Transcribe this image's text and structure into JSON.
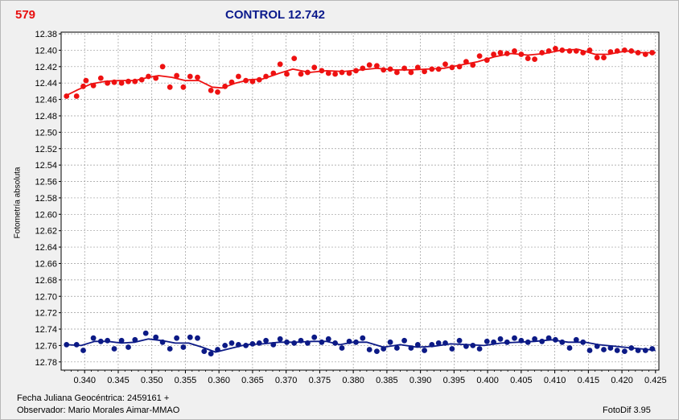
{
  "header": {
    "star_id": "579",
    "title": "CONTROL 12.742"
  },
  "footer": {
    "date_label": "Fecha Juliana Geocéntrica: 2459161 +",
    "observer": "Observador: Mario Morales Aimar-MMAO",
    "software": "FotoDif 3.95"
  },
  "colors": {
    "series_red": "#ee1111",
    "series_blue": "#0c1a86",
    "grid": "#9a9a9a",
    "plot_bg": "#ffffff"
  },
  "chart_data": {
    "type": "scatter",
    "title": "",
    "xlabel": "",
    "ylabel": "Fotometría absoluta",
    "xlim": [
      0.3365,
      0.4255
    ],
    "ylim": [
      12.378,
      12.79
    ],
    "y_inverted": true,
    "grid": true,
    "x_ticks": [
      0.34,
      0.345,
      0.35,
      0.355,
      0.36,
      0.365,
      0.37,
      0.375,
      0.38,
      0.385,
      0.39,
      0.395,
      0.4,
      0.405,
      0.41,
      0.415,
      0.42,
      0.425
    ],
    "x_tick_labels": [
      "0.340",
      "0.345",
      "0.350",
      "0.355",
      "0.360",
      "0.365",
      "0.370",
      "0.375",
      "0.380",
      "0.385",
      "0.390",
      "0.395",
      "0.400",
      "0.405",
      "0.410",
      "0.415",
      "0.420",
      "0.425"
    ],
    "y_ticks": [
      12.38,
      12.4,
      12.42,
      12.44,
      12.46,
      12.48,
      12.5,
      12.52,
      12.54,
      12.56,
      12.58,
      12.6,
      12.62,
      12.64,
      12.66,
      12.68,
      12.7,
      12.72,
      12.74,
      12.76,
      12.78
    ],
    "y_tick_labels": [
      "12.38",
      "12.40",
      "12.42",
      "12.44",
      "12.46",
      "12.48",
      "12.50",
      "12.52",
      "12.54",
      "12.56",
      "12.58",
      "12.60",
      "12.62",
      "12.64",
      "12.66",
      "12.68",
      "12.70",
      "12.72",
      "12.74",
      "12.76",
      "12.78"
    ],
    "series": [
      {
        "marker": "circle",
        "color": "#ee1111",
        "points": [
          [
            0.3373,
            12.456
          ],
          [
            0.3388,
            12.456
          ],
          [
            0.3398,
            12.444
          ],
          [
            0.3402,
            12.437
          ],
          [
            0.3413,
            12.443
          ],
          [
            0.3424,
            12.434
          ],
          [
            0.3434,
            12.44
          ],
          [
            0.3444,
            12.439
          ],
          [
            0.3455,
            12.44
          ],
          [
            0.3465,
            12.438
          ],
          [
            0.3475,
            12.438
          ],
          [
            0.3485,
            12.436
          ],
          [
            0.3495,
            12.432
          ],
          [
            0.3506,
            12.434
          ],
          [
            0.3516,
            12.42
          ],
          [
            0.3527,
            12.445
          ],
          [
            0.3537,
            12.431
          ],
          [
            0.3547,
            12.445
          ],
          [
            0.3557,
            12.432
          ],
          [
            0.3568,
            12.433
          ],
          [
            0.3588,
            12.449
          ],
          [
            0.3598,
            12.451
          ],
          [
            0.3609,
            12.444
          ],
          [
            0.3619,
            12.439
          ],
          [
            0.3629,
            12.432
          ],
          [
            0.364,
            12.437
          ],
          [
            0.365,
            12.438
          ],
          [
            0.366,
            12.436
          ],
          [
            0.367,
            12.432
          ],
          [
            0.3681,
            12.428
          ],
          [
            0.3691,
            12.417
          ],
          [
            0.3701,
            12.429
          ],
          [
            0.3712,
            12.41
          ],
          [
            0.3722,
            12.429
          ],
          [
            0.3732,
            12.427
          ],
          [
            0.3742,
            12.421
          ],
          [
            0.3753,
            12.425
          ],
          [
            0.3763,
            12.428
          ],
          [
            0.3773,
            12.429
          ],
          [
            0.3783,
            12.427
          ],
          [
            0.3794,
            12.428
          ],
          [
            0.3804,
            12.425
          ],
          [
            0.3814,
            12.422
          ],
          [
            0.3824,
            12.418
          ],
          [
            0.3835,
            12.419
          ],
          [
            0.3845,
            12.424
          ],
          [
            0.3855,
            12.423
          ],
          [
            0.3865,
            12.427
          ],
          [
            0.3876,
            12.422
          ],
          [
            0.3886,
            12.427
          ],
          [
            0.3896,
            12.421
          ],
          [
            0.3906,
            12.426
          ],
          [
            0.3917,
            12.423
          ],
          [
            0.3927,
            12.423
          ],
          [
            0.3937,
            12.417
          ],
          [
            0.3947,
            12.421
          ],
          [
            0.3958,
            12.42
          ],
          [
            0.3968,
            12.414
          ],
          [
            0.3978,
            12.418
          ],
          [
            0.3988,
            12.407
          ],
          [
            0.3999,
            12.412
          ],
          [
            0.4009,
            12.405
          ],
          [
            0.4019,
            12.403
          ],
          [
            0.4029,
            12.404
          ],
          [
            0.404,
            12.401
          ],
          [
            0.405,
            12.405
          ],
          [
            0.406,
            12.41
          ],
          [
            0.407,
            12.411
          ],
          [
            0.4081,
            12.403
          ],
          [
            0.4091,
            12.401
          ],
          [
            0.4101,
            12.398
          ],
          [
            0.4111,
            12.4
          ],
          [
            0.4122,
            12.401
          ],
          [
            0.4132,
            12.401
          ],
          [
            0.4142,
            12.403
          ],
          [
            0.4152,
            12.4
          ],
          [
            0.4163,
            12.409
          ],
          [
            0.4173,
            12.409
          ],
          [
            0.4183,
            12.402
          ],
          [
            0.4193,
            12.401
          ],
          [
            0.4204,
            12.4
          ],
          [
            0.4214,
            12.401
          ],
          [
            0.4224,
            12.403
          ],
          [
            0.4235,
            12.405
          ],
          [
            0.4245,
            12.403
          ]
        ],
        "trend": [
          [
            0.3373,
            12.455
          ],
          [
            0.339,
            12.448
          ],
          [
            0.341,
            12.441
          ],
          [
            0.343,
            12.438
          ],
          [
            0.345,
            12.437
          ],
          [
            0.3475,
            12.437
          ],
          [
            0.3495,
            12.433
          ],
          [
            0.351,
            12.431
          ],
          [
            0.353,
            12.433
          ],
          [
            0.355,
            12.437
          ],
          [
            0.357,
            12.437
          ],
          [
            0.359,
            12.445
          ],
          [
            0.3605,
            12.446
          ],
          [
            0.3625,
            12.44
          ],
          [
            0.3645,
            12.436
          ],
          [
            0.3665,
            12.435
          ],
          [
            0.369,
            12.428
          ],
          [
            0.371,
            12.423
          ],
          [
            0.3735,
            12.427
          ],
          [
            0.376,
            12.425
          ],
          [
            0.3785,
            12.426
          ],
          [
            0.381,
            12.424
          ],
          [
            0.3835,
            12.422
          ],
          [
            0.386,
            12.424
          ],
          [
            0.3885,
            12.424
          ],
          [
            0.391,
            12.423
          ],
          [
            0.3935,
            12.422
          ],
          [
            0.396,
            12.418
          ],
          [
            0.3985,
            12.414
          ],
          [
            0.401,
            12.408
          ],
          [
            0.4035,
            12.404
          ],
          [
            0.406,
            12.406
          ],
          [
            0.4085,
            12.404
          ],
          [
            0.411,
            12.4
          ],
          [
            0.4135,
            12.399
          ],
          [
            0.416,
            12.405
          ],
          [
            0.418,
            12.405
          ],
          [
            0.4205,
            12.401
          ],
          [
            0.423,
            12.403
          ],
          [
            0.425,
            12.403
          ]
        ]
      },
      {
        "marker": "circle",
        "color": "#0c1a86",
        "points": [
          [
            0.3373,
            12.759
          ],
          [
            0.3388,
            12.759
          ],
          [
            0.3398,
            12.766
          ],
          [
            0.3413,
            12.751
          ],
          [
            0.3424,
            12.755
          ],
          [
            0.3434,
            12.754
          ],
          [
            0.3444,
            12.764
          ],
          [
            0.3455,
            12.754
          ],
          [
            0.3465,
            12.762
          ],
          [
            0.3475,
            12.753
          ],
          [
            0.3491,
            12.745
          ],
          [
            0.3506,
            12.75
          ],
          [
            0.3516,
            12.756
          ],
          [
            0.3527,
            12.764
          ],
          [
            0.3537,
            12.751
          ],
          [
            0.3547,
            12.762
          ],
          [
            0.3557,
            12.75
          ],
          [
            0.3568,
            12.751
          ],
          [
            0.3578,
            12.767
          ],
          [
            0.3588,
            12.77
          ],
          [
            0.3598,
            12.765
          ],
          [
            0.3609,
            12.76
          ],
          [
            0.3619,
            12.757
          ],
          [
            0.3629,
            12.759
          ],
          [
            0.364,
            12.76
          ],
          [
            0.365,
            12.758
          ],
          [
            0.366,
            12.757
          ],
          [
            0.367,
            12.754
          ],
          [
            0.3681,
            12.759
          ],
          [
            0.3691,
            12.752
          ],
          [
            0.3701,
            12.756
          ],
          [
            0.3712,
            12.757
          ],
          [
            0.3722,
            12.754
          ],
          [
            0.3732,
            12.757
          ],
          [
            0.3742,
            12.75
          ],
          [
            0.3753,
            12.756
          ],
          [
            0.3763,
            12.752
          ],
          [
            0.3773,
            12.757
          ],
          [
            0.3783,
            12.763
          ],
          [
            0.3794,
            12.755
          ],
          [
            0.3804,
            12.756
          ],
          [
            0.3814,
            12.751
          ],
          [
            0.3824,
            12.765
          ],
          [
            0.3835,
            12.767
          ],
          [
            0.3845,
            12.764
          ],
          [
            0.3855,
            12.756
          ],
          [
            0.3865,
            12.763
          ],
          [
            0.3876,
            12.754
          ],
          [
            0.3886,
            12.763
          ],
          [
            0.3896,
            12.759
          ],
          [
            0.3906,
            12.766
          ],
          [
            0.3917,
            12.759
          ],
          [
            0.3927,
            12.757
          ],
          [
            0.3937,
            12.757
          ],
          [
            0.3947,
            12.764
          ],
          [
            0.3958,
            12.754
          ],
          [
            0.3968,
            12.761
          ],
          [
            0.3978,
            12.76
          ],
          [
            0.3988,
            12.764
          ],
          [
            0.3999,
            12.755
          ],
          [
            0.4009,
            12.756
          ],
          [
            0.4019,
            12.752
          ],
          [
            0.4029,
            12.756
          ],
          [
            0.404,
            12.751
          ],
          [
            0.405,
            12.754
          ],
          [
            0.406,
            12.756
          ],
          [
            0.407,
            12.752
          ],
          [
            0.4081,
            12.755
          ],
          [
            0.4091,
            12.751
          ],
          [
            0.4101,
            12.753
          ],
          [
            0.4111,
            12.756
          ],
          [
            0.4122,
            12.763
          ],
          [
            0.4132,
            12.753
          ],
          [
            0.4142,
            12.756
          ],
          [
            0.4152,
            12.766
          ],
          [
            0.4163,
            12.761
          ],
          [
            0.4173,
            12.765
          ],
          [
            0.4183,
            12.763
          ],
          [
            0.4193,
            12.766
          ],
          [
            0.4204,
            12.767
          ],
          [
            0.4214,
            12.763
          ],
          [
            0.4224,
            12.766
          ],
          [
            0.4235,
            12.766
          ],
          [
            0.4245,
            12.764
          ]
        ],
        "trend": [
          [
            0.3373,
            12.759
          ],
          [
            0.3395,
            12.76
          ],
          [
            0.3415,
            12.755
          ],
          [
            0.3435,
            12.755
          ],
          [
            0.3455,
            12.757
          ],
          [
            0.3475,
            12.756
          ],
          [
            0.3495,
            12.752
          ],
          [
            0.3515,
            12.754
          ],
          [
            0.3535,
            12.757
          ],
          [
            0.3555,
            12.757
          ],
          [
            0.3575,
            12.762
          ],
          [
            0.3595,
            12.768
          ],
          [
            0.3615,
            12.764
          ],
          [
            0.364,
            12.759
          ],
          [
            0.3665,
            12.758
          ],
          [
            0.369,
            12.756
          ],
          [
            0.3715,
            12.756
          ],
          [
            0.374,
            12.755
          ],
          [
            0.376,
            12.755
          ],
          [
            0.378,
            12.759
          ],
          [
            0.38,
            12.756
          ],
          [
            0.382,
            12.756
          ],
          [
            0.3845,
            12.762
          ],
          [
            0.387,
            12.759
          ],
          [
            0.3895,
            12.762
          ],
          [
            0.392,
            12.761
          ],
          [
            0.3945,
            12.758
          ],
          [
            0.397,
            12.759
          ],
          [
            0.3995,
            12.76
          ],
          [
            0.402,
            12.757
          ],
          [
            0.4045,
            12.756
          ],
          [
            0.407,
            12.755
          ],
          [
            0.4095,
            12.753
          ],
          [
            0.412,
            12.756
          ],
          [
            0.4145,
            12.756
          ],
          [
            0.4165,
            12.759
          ],
          [
            0.419,
            12.761
          ],
          [
            0.4215,
            12.763
          ],
          [
            0.424,
            12.765
          ],
          [
            0.425,
            12.766
          ]
        ]
      }
    ]
  }
}
